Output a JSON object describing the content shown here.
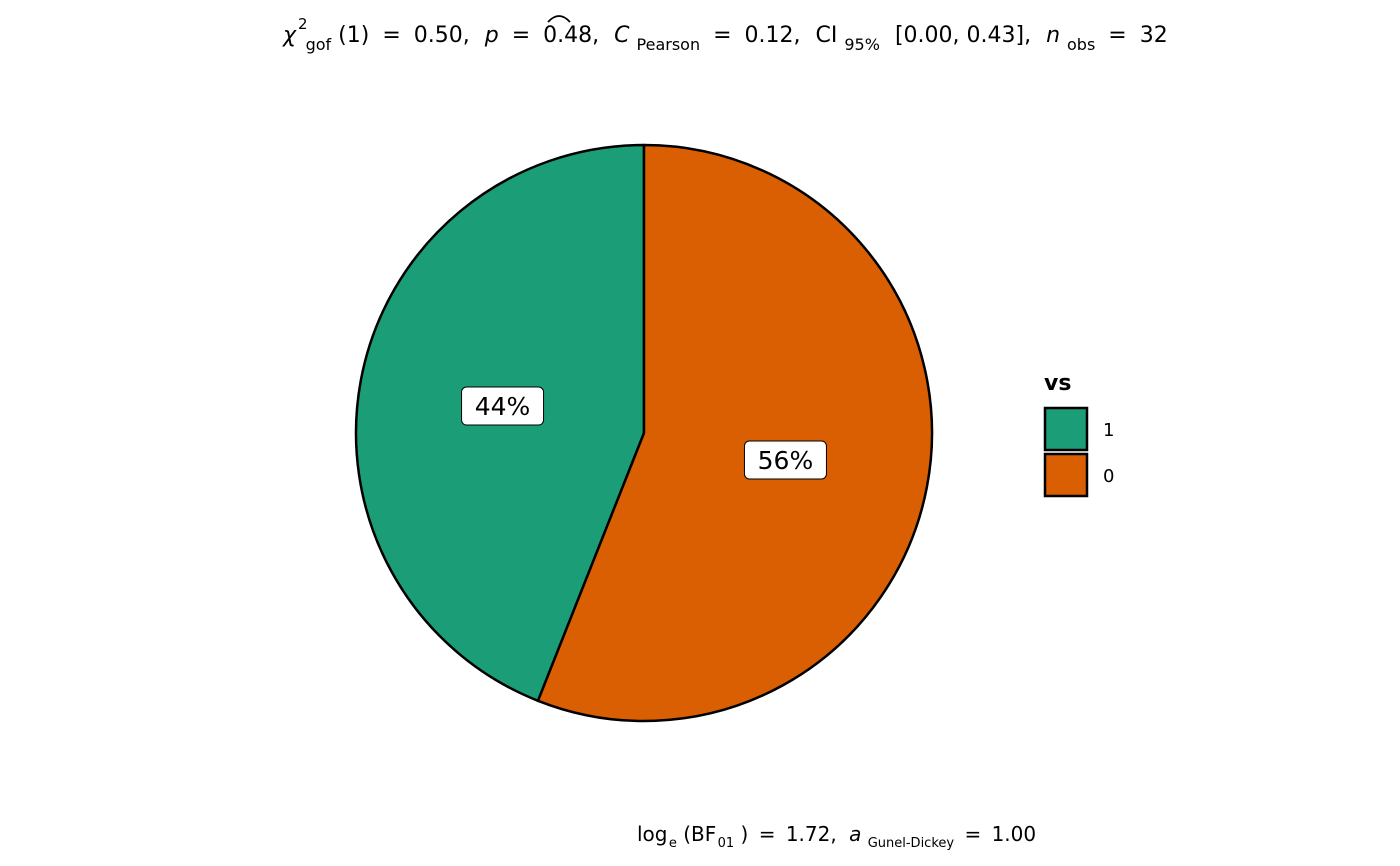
{
  "chart_data": {
    "type": "pie",
    "title": "χ²gof(1) = 0.50, p = 0.48, Ĉ Pearson = 0.12, CI95% [0.00, 0.43], nobs = 32",
    "subtitle": "loge(BF01) = 1.72, a Gunel-Dickey = 1.00",
    "stats": {
      "statistic_name": "χ",
      "statistic_sup": "2",
      "statistic_sub": "gof",
      "df": "(1)",
      "statistic_value": "0.50",
      "p_symbol": "p",
      "p_value": "0.48",
      "effect_symbol": "C",
      "effect_sub": "Pearson",
      "effect_value": "0.12",
      "ci_symbol": "CI",
      "ci_sub": "95%",
      "ci_text": "[0.00, 0.43]",
      "n_symbol": "n",
      "n_sub": "obs",
      "n_value": "32",
      "bf_prefix": "log",
      "bf_prefix_sub": "e",
      "bf_name": "BF",
      "bf_sub": "01",
      "bf_value": "1.72",
      "prior_symbol": "a",
      "prior_sub": "Gunel-Dickey",
      "prior_value": "1.00",
      "eq": "=",
      "comma": ","
    },
    "legend": {
      "title": "vs",
      "placement": "right"
    },
    "slices": [
      {
        "category": "1",
        "value": 44,
        "label": "44%",
        "color": "#1b9e77"
      },
      {
        "category": "0",
        "value": 56,
        "label": "56%",
        "color": "#d95f02"
      }
    ],
    "outline_color": "#000000"
  }
}
